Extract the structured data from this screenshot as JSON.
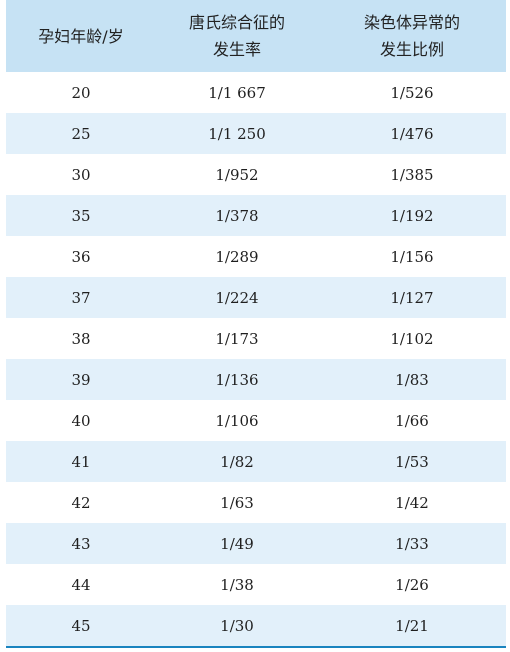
{
  "table": {
    "headers": [
      [
        "孕妇年龄/岁"
      ],
      [
        "唐氏综合征的",
        "发生率"
      ],
      [
        "染色体异常的",
        "发生比例"
      ]
    ],
    "rows": [
      [
        "20",
        "1/1 667",
        "1/526"
      ],
      [
        "25",
        "1/1 250",
        "1/476"
      ],
      [
        "30",
        "1/952",
        "1/385"
      ],
      [
        "35",
        "1/378",
        "1/192"
      ],
      [
        "36",
        "1/289",
        "1/156"
      ],
      [
        "37",
        "1/224",
        "1/127"
      ],
      [
        "38",
        "1/173",
        "1/102"
      ],
      [
        "39",
        "1/136",
        "1/83"
      ],
      [
        "40",
        "1/106",
        "1/66"
      ],
      [
        "41",
        "1/82",
        "1/53"
      ],
      [
        "42",
        "1/63",
        "1/42"
      ],
      [
        "43",
        "1/49",
        "1/33"
      ],
      [
        "44",
        "1/38",
        "1/26"
      ],
      [
        "45",
        "1/30",
        "1/21"
      ]
    ]
  },
  "colors": {
    "header_bg": "#c6e2f4",
    "stripe_bg": "#e2f0fa",
    "border": "#1a84bf"
  }
}
